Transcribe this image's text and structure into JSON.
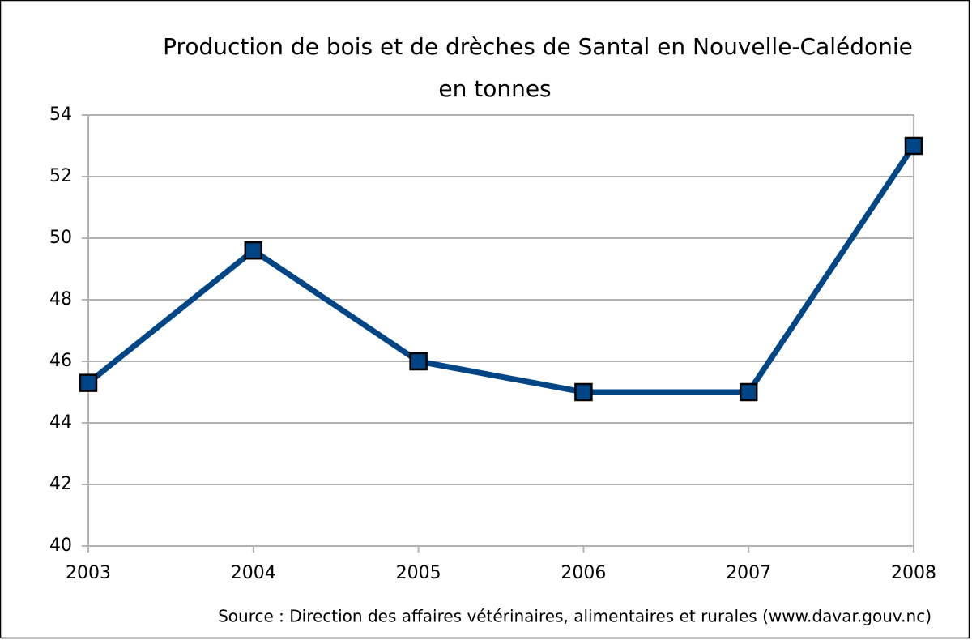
{
  "chart_data": {
    "type": "line",
    "title": "Production de bois et de drèches de Santal en Nouvelle-Calédonie",
    "subtitle": "en tonnes",
    "annotation": "Source : Direction des affaires vétérinaires, alimentaires et rurales (www.davar.gouv.nc)",
    "x": [
      2003,
      2004,
      2005,
      2006,
      2007,
      2008
    ],
    "series": [
      {
        "color": "#004586",
        "values": [
          45.3,
          49.6,
          46,
          45,
          45,
          53
        ]
      }
    ],
    "xlim": [
      2003,
      2008
    ],
    "xticks": [
      2003,
      2004,
      2005,
      2006,
      2007,
      2008
    ],
    "ylim": [
      40,
      54
    ],
    "yticks": [
      40,
      42,
      44,
      46,
      48,
      50,
      52,
      54
    ],
    "grid": true
  }
}
